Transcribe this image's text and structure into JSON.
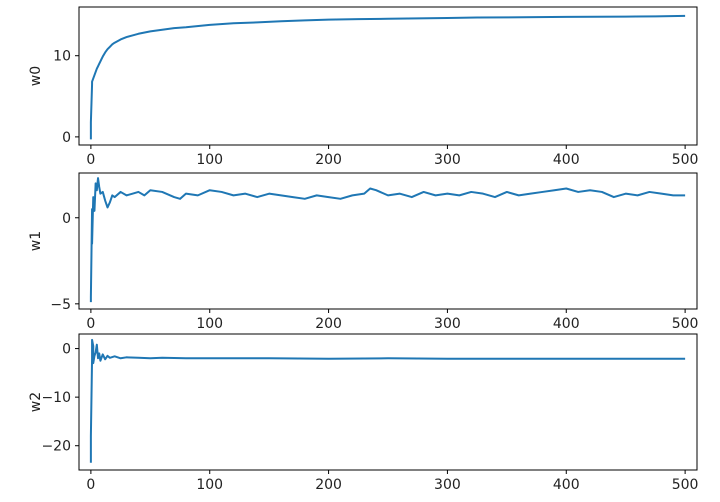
{
  "chart_data": [
    {
      "type": "line",
      "ylabel": "w0",
      "xlim": [
        -10,
        510
      ],
      "ylim": [
        -1,
        16
      ],
      "xticks": [
        0,
        100,
        200,
        300,
        400,
        500
      ],
      "yticks": [
        0,
        10
      ],
      "color": "#1f77b4",
      "series": [
        {
          "x": [
            0,
            0,
            1,
            1,
            2,
            3,
            4,
            5,
            6,
            7,
            8,
            9,
            10,
            12,
            14,
            16,
            18,
            20,
            25,
            30,
            35,
            40,
            50,
            60,
            70,
            80,
            100,
            120,
            140,
            160,
            180,
            200,
            225,
            250,
            275,
            300,
            325,
            350,
            375,
            400,
            425,
            450,
            475,
            500
          ],
          "y": [
            -0.3,
            1.8,
            6.5,
            6.8,
            7.2,
            7.6,
            8.0,
            8.4,
            8.7,
            9.0,
            9.3,
            9.6,
            9.9,
            10.4,
            10.8,
            11.1,
            11.4,
            11.6,
            12.0,
            12.3,
            12.5,
            12.7,
            13.0,
            13.2,
            13.4,
            13.5,
            13.8,
            14.0,
            14.1,
            14.25,
            14.35,
            14.45,
            14.5,
            14.55,
            14.6,
            14.65,
            14.7,
            14.72,
            14.75,
            14.78,
            14.8,
            14.82,
            14.85,
            14.9
          ]
        }
      ]
    },
    {
      "type": "line",
      "ylabel": "w1",
      "xlim": [
        -10,
        510
      ],
      "ylim": [
        -5.3,
        2.6
      ],
      "xticks": [
        0,
        100,
        200,
        300,
        400,
        500
      ],
      "yticks": [
        -5,
        0
      ],
      "color": "#1f77b4",
      "series": [
        {
          "x": [
            0,
            0,
            1,
            1,
            2,
            3,
            4,
            5,
            6,
            7,
            8,
            10,
            12,
            14,
            16,
            18,
            20,
            25,
            30,
            35,
            40,
            45,
            50,
            60,
            70,
            75,
            80,
            90,
            100,
            110,
            120,
            130,
            140,
            150,
            160,
            170,
            180,
            190,
            200,
            210,
            220,
            230,
            235,
            240,
            250,
            260,
            270,
            280,
            290,
            300,
            310,
            320,
            330,
            340,
            350,
            360,
            370,
            380,
            390,
            400,
            410,
            420,
            430,
            440,
            450,
            460,
            470,
            480,
            490,
            500
          ],
          "y": [
            -4.9,
            -4.6,
            0.5,
            -1.5,
            1.2,
            0.4,
            2.0,
            1.6,
            2.3,
            1.8,
            1.4,
            1.5,
            1.0,
            0.6,
            0.9,
            1.3,
            1.2,
            1.5,
            1.3,
            1.4,
            1.5,
            1.3,
            1.6,
            1.5,
            1.2,
            1.1,
            1.4,
            1.3,
            1.6,
            1.5,
            1.3,
            1.4,
            1.2,
            1.4,
            1.3,
            1.2,
            1.1,
            1.3,
            1.2,
            1.1,
            1.3,
            1.4,
            1.7,
            1.6,
            1.3,
            1.4,
            1.2,
            1.5,
            1.3,
            1.4,
            1.3,
            1.5,
            1.4,
            1.2,
            1.5,
            1.3,
            1.4,
            1.5,
            1.6,
            1.7,
            1.5,
            1.6,
            1.5,
            1.2,
            1.4,
            1.3,
            1.5,
            1.4,
            1.3,
            1.3
          ]
        }
      ]
    },
    {
      "type": "line",
      "ylabel": "w2",
      "xlim": [
        -10,
        510
      ],
      "ylim": [
        -25,
        3
      ],
      "xticks": [
        0,
        100,
        200,
        300,
        400,
        500
      ],
      "yticks": [
        -20,
        -10,
        0
      ],
      "color": "#1f77b4",
      "series": [
        {
          "x": [
            0,
            0,
            1,
            1,
            2,
            2,
            3,
            4,
            5,
            6,
            7,
            8,
            10,
            12,
            14,
            16,
            20,
            25,
            30,
            40,
            50,
            60,
            80,
            100,
            150,
            200,
            250,
            300,
            350,
            400,
            450,
            500
          ],
          "y": [
            -23.5,
            -18.0,
            -2.0,
            1.8,
            0.5,
            -3.0,
            -1.5,
            -0.8,
            0.8,
            -2.0,
            -1.0,
            -2.5,
            -1.2,
            -2.2,
            -1.5,
            -1.9,
            -1.6,
            -2.0,
            -1.8,
            -1.9,
            -2.0,
            -1.9,
            -2.0,
            -2.0,
            -2.0,
            -2.1,
            -2.0,
            -2.1,
            -2.1,
            -2.1,
            -2.1,
            -2.1
          ]
        }
      ]
    }
  ]
}
